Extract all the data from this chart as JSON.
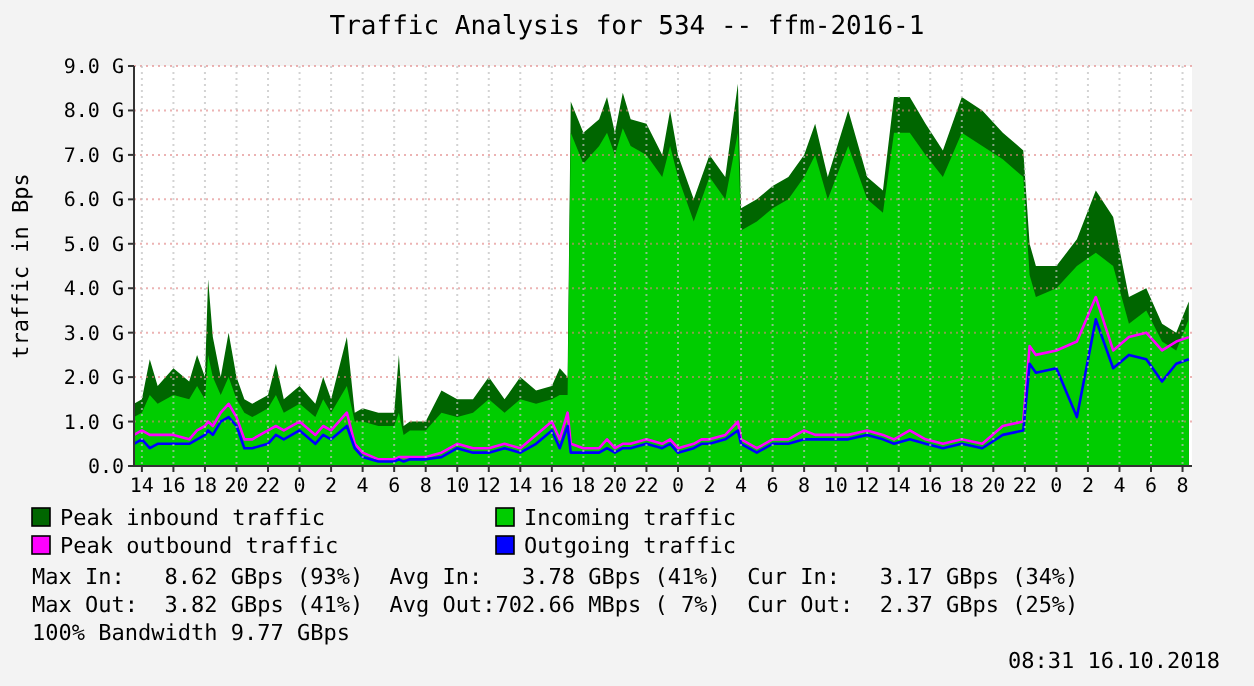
{
  "chart_data": {
    "type": "area",
    "title": "Traffic Analysis for 534 -- ffm-2016-1",
    "ylabel": "traffic in Bps",
    "x": [
      "2018-10-13T13:30",
      "2018-10-13T14:00",
      "2018-10-13T14:30",
      "2018-10-13T15:00",
      "2018-10-13T16:00",
      "2018-10-13T17:00",
      "2018-10-13T17:30",
      "2018-10-13T18:00",
      "2018-10-13T18:12",
      "2018-10-13T18:30",
      "2018-10-13T19:00",
      "2018-10-13T19:30",
      "2018-10-13T20:00",
      "2018-10-13T20:30",
      "2018-10-13T21:00",
      "2018-10-13T22:00",
      "2018-10-13T22:30",
      "2018-10-13T23:00",
      "2018-10-14T00:00",
      "2018-10-14T01:00",
      "2018-10-14T01:30",
      "2018-10-14T02:00",
      "2018-10-14T03:00",
      "2018-10-14T03:30",
      "2018-10-14T04:00",
      "2018-10-14T05:00",
      "2018-10-14T06:00",
      "2018-10-14T06:18",
      "2018-10-14T06:36",
      "2018-10-14T07:00",
      "2018-10-14T08:00",
      "2018-10-14T09:00",
      "2018-10-14T10:00",
      "2018-10-14T11:00",
      "2018-10-14T12:00",
      "2018-10-14T13:00",
      "2018-10-14T14:00",
      "2018-10-14T15:00",
      "2018-10-14T16:00",
      "2018-10-14T16:30",
      "2018-10-14T17:00",
      "2018-10-14T17:12",
      "2018-10-14T18:00",
      "2018-10-14T19:00",
      "2018-10-14T19:30",
      "2018-10-14T20:00",
      "2018-10-14T20:30",
      "2018-10-14T21:00",
      "2018-10-14T22:00",
      "2018-10-14T23:00",
      "2018-10-14T23:30",
      "2018-10-15T00:00",
      "2018-10-15T01:00",
      "2018-10-15T01:30",
      "2018-10-15T02:00",
      "2018-10-15T03:00",
      "2018-10-15T03:48",
      "2018-10-15T04:00",
      "2018-10-15T05:00",
      "2018-10-15T06:00",
      "2018-10-15T07:00",
      "2018-10-15T08:00",
      "2018-10-15T08:42",
      "2018-10-15T09:30",
      "2018-10-15T10:48",
      "2018-10-15T12:00",
      "2018-10-15T13:00",
      "2018-10-15T13:42",
      "2018-10-15T14:42",
      "2018-10-15T15:42",
      "2018-10-15T16:48",
      "2018-10-15T18:00",
      "2018-10-15T19:18",
      "2018-10-15T20:36",
      "2018-10-15T21:54",
      "2018-10-15T22:18",
      "2018-10-15T22:42",
      "2018-10-16T00:00",
      "2018-10-16T01:18",
      "2018-10-16T02:30",
      "2018-10-16T03:36",
      "2018-10-16T04:36",
      "2018-10-16T05:42",
      "2018-10-16T06:42",
      "2018-10-16T07:36",
      "2018-10-16T08:24"
    ],
    "series": [
      {
        "name": "Peak inbound traffic",
        "type": "area",
        "color": "#006600",
        "values": [
          1.4,
          1.5,
          2.4,
          1.8,
          2.2,
          1.9,
          2.5,
          2.0,
          4.2,
          2.9,
          2.0,
          3.0,
          2.0,
          1.5,
          1.4,
          1.6,
          2.3,
          1.5,
          1.8,
          1.4,
          2.0,
          1.5,
          2.9,
          1.2,
          1.3,
          1.2,
          1.2,
          2.5,
          0.9,
          1.0,
          1.0,
          1.7,
          1.5,
          1.5,
          2.0,
          1.5,
          2.0,
          1.7,
          1.8,
          2.2,
          2.0,
          8.2,
          7.5,
          7.8,
          8.3,
          7.5,
          8.4,
          7.8,
          7.7,
          7.0,
          8.0,
          7.0,
          6.0,
          6.5,
          7.0,
          6.5,
          8.6,
          5.8,
          6.0,
          6.3,
          6.5,
          7.0,
          7.7,
          6.5,
          8.0,
          6.5,
          6.2,
          8.3,
          8.3,
          7.7,
          7.1,
          8.3,
          8.0,
          7.5,
          7.1,
          5.0,
          4.5,
          4.5,
          5.1,
          6.2,
          5.6,
          3.8,
          4.0,
          3.2,
          3.0,
          3.7
        ]
      },
      {
        "name": "Incoming traffic",
        "type": "area",
        "color": "#00cc00",
        "values": [
          1.1,
          1.2,
          1.6,
          1.4,
          1.6,
          1.5,
          1.8,
          1.5,
          2.5,
          2.0,
          1.6,
          2.0,
          1.5,
          1.2,
          1.1,
          1.3,
          1.6,
          1.2,
          1.4,
          1.1,
          1.5,
          1.2,
          1.8,
          1.0,
          1.0,
          0.9,
          0.9,
          1.2,
          0.7,
          0.8,
          0.8,
          1.2,
          1.1,
          1.2,
          1.5,
          1.2,
          1.5,
          1.4,
          1.5,
          1.6,
          1.6,
          7.5,
          6.8,
          7.2,
          7.5,
          7.0,
          7.6,
          7.2,
          7.0,
          6.5,
          7.2,
          6.5,
          5.5,
          6.0,
          6.5,
          6.0,
          7.5,
          5.3,
          5.5,
          5.8,
          6.0,
          6.5,
          7.0,
          6.0,
          7.2,
          6.0,
          5.7,
          7.5,
          7.5,
          7.0,
          6.5,
          7.5,
          7.2,
          6.9,
          6.5,
          4.3,
          3.8,
          4.0,
          4.5,
          4.8,
          4.5,
          3.2,
          3.5,
          2.8,
          2.6,
          3.3
        ]
      },
      {
        "name": "Peak outbound traffic",
        "type": "line",
        "color": "#ff00ff",
        "values": [
          0.7,
          0.8,
          0.7,
          0.7,
          0.7,
          0.6,
          0.8,
          0.9,
          1.0,
          0.9,
          1.2,
          1.4,
          1.1,
          0.6,
          0.6,
          0.8,
          0.9,
          0.8,
          1.0,
          0.7,
          0.9,
          0.8,
          1.2,
          0.5,
          0.3,
          0.15,
          0.15,
          0.2,
          0.2,
          0.2,
          0.2,
          0.3,
          0.5,
          0.4,
          0.4,
          0.5,
          0.4,
          0.7,
          1.0,
          0.6,
          1.2,
          0.5,
          0.4,
          0.4,
          0.6,
          0.4,
          0.5,
          0.5,
          0.6,
          0.5,
          0.6,
          0.4,
          0.5,
          0.6,
          0.6,
          0.7,
          1.0,
          0.6,
          0.4,
          0.6,
          0.6,
          0.8,
          0.7,
          0.7,
          0.7,
          0.8,
          0.7,
          0.6,
          0.8,
          0.6,
          0.5,
          0.6,
          0.5,
          0.9,
          1.0,
          2.7,
          2.5,
          2.6,
          2.8,
          3.8,
          2.6,
          2.9,
          3.0,
          2.6,
          2.8,
          2.9
        ]
      },
      {
        "name": "Outgoing traffic",
        "type": "line",
        "color": "#0000ff",
        "values": [
          0.5,
          0.6,
          0.4,
          0.5,
          0.5,
          0.5,
          0.6,
          0.7,
          0.8,
          0.7,
          1.0,
          1.1,
          0.9,
          0.4,
          0.4,
          0.5,
          0.7,
          0.6,
          0.8,
          0.5,
          0.7,
          0.6,
          0.9,
          0.4,
          0.2,
          0.1,
          0.1,
          0.15,
          0.1,
          0.15,
          0.15,
          0.2,
          0.4,
          0.3,
          0.3,
          0.4,
          0.3,
          0.5,
          0.8,
          0.4,
          0.9,
          0.3,
          0.3,
          0.3,
          0.4,
          0.3,
          0.4,
          0.4,
          0.5,
          0.4,
          0.5,
          0.3,
          0.4,
          0.5,
          0.5,
          0.6,
          0.8,
          0.5,
          0.3,
          0.5,
          0.5,
          0.6,
          0.6,
          0.6,
          0.6,
          0.7,
          0.6,
          0.5,
          0.6,
          0.5,
          0.4,
          0.5,
          0.4,
          0.7,
          0.8,
          2.3,
          2.1,
          2.2,
          1.1,
          3.3,
          2.2,
          2.5,
          2.4,
          1.9,
          2.3,
          2.4
        ]
      }
    ],
    "xlim": [
      "2018-10-13T13:30",
      "2018-10-16T08:36"
    ],
    "xticks": [
      {
        "value": "2018-10-13T14:00",
        "label": "14"
      },
      {
        "value": "2018-10-13T16:00",
        "label": "16"
      },
      {
        "value": "2018-10-13T18:00",
        "label": "18"
      },
      {
        "value": "2018-10-13T20:00",
        "label": "20"
      },
      {
        "value": "2018-10-13T22:00",
        "label": "22"
      },
      {
        "value": "2018-10-14T00:00",
        "label": "0"
      },
      {
        "value": "2018-10-14T02:00",
        "label": "2"
      },
      {
        "value": "2018-10-14T04:00",
        "label": "4"
      },
      {
        "value": "2018-10-14T06:00",
        "label": "6"
      },
      {
        "value": "2018-10-14T08:00",
        "label": "8"
      },
      {
        "value": "2018-10-14T10:00",
        "label": "10"
      },
      {
        "value": "2018-10-14T12:00",
        "label": "12"
      },
      {
        "value": "2018-10-14T14:00",
        "label": "14"
      },
      {
        "value": "2018-10-14T16:00",
        "label": "16"
      },
      {
        "value": "2018-10-14T18:00",
        "label": "18"
      },
      {
        "value": "2018-10-14T20:00",
        "label": "20"
      },
      {
        "value": "2018-10-14T22:00",
        "label": "22"
      },
      {
        "value": "2018-10-15T00:00",
        "label": "0"
      },
      {
        "value": "2018-10-15T02:00",
        "label": "2"
      },
      {
        "value": "2018-10-15T04:00",
        "label": "4"
      },
      {
        "value": "2018-10-15T06:00",
        "label": "6"
      },
      {
        "value": "2018-10-15T08:00",
        "label": "8"
      },
      {
        "value": "2018-10-15T10:00",
        "label": "10"
      },
      {
        "value": "2018-10-15T12:00",
        "label": "12"
      },
      {
        "value": "2018-10-15T14:00",
        "label": "14"
      },
      {
        "value": "2018-10-15T16:00",
        "label": "16"
      },
      {
        "value": "2018-10-15T18:00",
        "label": "18"
      },
      {
        "value": "2018-10-15T20:00",
        "label": "20"
      },
      {
        "value": "2018-10-15T22:00",
        "label": "22"
      },
      {
        "value": "2018-10-16T00:00",
        "label": "0"
      },
      {
        "value": "2018-10-16T02:00",
        "label": "2"
      },
      {
        "value": "2018-10-16T04:00",
        "label": "4"
      },
      {
        "value": "2018-10-16T06:00",
        "label": "6"
      },
      {
        "value": "2018-10-16T08:00",
        "label": "8"
      }
    ],
    "ylim": [
      0,
      9
    ],
    "yticks": [
      {
        "value": 0,
        "label": "0.0"
      },
      {
        "value": 1,
        "label": "1.0 G"
      },
      {
        "value": 2,
        "label": "2.0 G"
      },
      {
        "value": 3,
        "label": "3.0 G"
      },
      {
        "value": 4,
        "label": "4.0 G"
      },
      {
        "value": 5,
        "label": "5.0 G"
      },
      {
        "value": 6,
        "label": "6.0 G"
      },
      {
        "value": 7,
        "label": "7.0 G"
      },
      {
        "value": 8,
        "label": "8.0 G"
      },
      {
        "value": 9,
        "label": "9.0 G"
      }
    ],
    "grid": true,
    "legend": "bottom",
    "annotations": [
      "Max In:   8.62 GBps (93%)  Avg In:   3.78 GBps (41%)  Cur In:   3.17 GBps (34%)",
      "Max Out:  3.82 GBps (41%)  Avg Out:702.66 MBps ( 7%)  Cur Out:  2.37 GBps (25%)",
      "100% Bandwidth 9.77 GBps",
      "08:31 16.10.2018"
    ]
  }
}
